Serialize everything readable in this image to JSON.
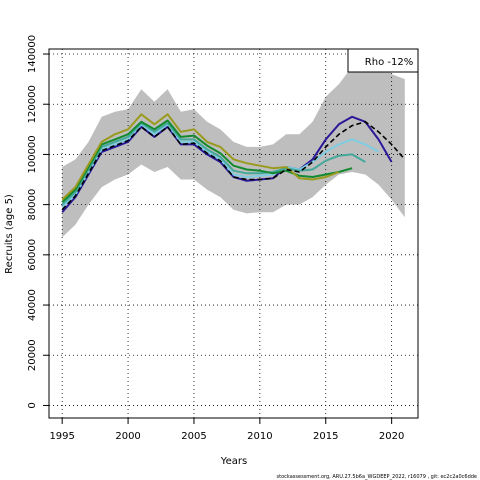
{
  "chart_data": {
    "type": "line",
    "xlabel": "Years",
    "ylabel": "Recruits (age 5)",
    "xlim": [
      1994,
      2022
    ],
    "ylim": [
      -5000,
      142000
    ],
    "x_ticks": [
      1995,
      2000,
      2005,
      2010,
      2015,
      2020
    ],
    "y_ticks": [
      0,
      20000,
      40000,
      60000,
      80000,
      100000,
      120000,
      140000
    ],
    "grid": true,
    "legend": {
      "position": "top-right",
      "text": "Rho -12%"
    },
    "footer": "stockassessment.org, ARU.27.5b6a_WGDEEP_2022, r16079 , git: ec2c2a0c6dde",
    "band": {
      "x": [
        1995,
        1996,
        1997,
        1998,
        1999,
        2000,
        2001,
        2002,
        2003,
        2004,
        2005,
        2006,
        2007,
        2008,
        2009,
        2010,
        2011,
        2012,
        2013,
        2014,
        2015,
        2016,
        2017,
        2018,
        2019,
        2020,
        2021
      ],
      "upper": [
        95000,
        98000,
        105000,
        115000,
        117000,
        118000,
        126000,
        121000,
        126000,
        117000,
        118000,
        113000,
        110000,
        105000,
        103000,
        103000,
        104000,
        108000,
        108000,
        113000,
        123000,
        128000,
        135000,
        140000,
        138000,
        132000,
        130000
      ],
      "lower": [
        67000,
        72000,
        80000,
        87000,
        90000,
        92000,
        96000,
        93000,
        95000,
        90000,
        90000,
        86000,
        83000,
        78000,
        76500,
        77000,
        77000,
        80000,
        80000,
        83000,
        88000,
        92000,
        93000,
        92000,
        88000,
        82000,
        75000
      ]
    },
    "series": [
      {
        "color": "#2b1899",
        "width": 2,
        "dash": "",
        "x": [
          1995,
          1996,
          1997,
          1998,
          1999,
          2000,
          2001,
          2002,
          2003,
          2004,
          2005,
          2006,
          2007,
          2008,
          2009,
          2010,
          2011,
          2012,
          2013,
          2014,
          2015,
          2016,
          2017,
          2018,
          2019,
          2020
        ],
        "y": [
          77000,
          83000,
          92000,
          101000,
          103000,
          105000,
          111000,
          107000,
          111000,
          104000,
          104000,
          100000,
          97000,
          91000,
          89500,
          90000,
          90500,
          95000,
          94000,
          98000,
          106000,
          112000,
          115000,
          113000,
          106000,
          97000
        ]
      },
      {
        "color": "#7ecde3",
        "width": 2,
        "dash": "",
        "x": [
          1995,
          1996,
          1997,
          1998,
          1999,
          2000,
          2001,
          2002,
          2003,
          2004,
          2005,
          2006,
          2007,
          2008,
          2009,
          2010,
          2011,
          2012,
          2013,
          2014,
          2015,
          2016,
          2017,
          2018,
          2019
        ],
        "y": [
          79000,
          84000,
          93000,
          102000,
          104000,
          106000,
          112000,
          108000,
          112000,
          105000,
          105000,
          101000,
          98000,
          92000,
          91000,
          91500,
          92000,
          95000,
          94000,
          97000,
          101000,
          104000,
          106000,
          104000,
          101000
        ]
      },
      {
        "color": "#44a89b",
        "width": 2,
        "dash": "",
        "x": [
          1995,
          1996,
          1997,
          1998,
          1999,
          2000,
          2001,
          2002,
          2003,
          2004,
          2005,
          2006,
          2007,
          2008,
          2009,
          2010,
          2011,
          2012,
          2013,
          2014,
          2015,
          2016,
          2017,
          2018
        ],
        "y": [
          80000,
          85000,
          94000,
          103000,
          105000,
          107000,
          112500,
          109000,
          112500,
          106000,
          106000,
          102000,
          99000,
          93500,
          92500,
          92500,
          93000,
          94500,
          93500,
          94000,
          97500,
          99500,
          100000,
          97000
        ]
      },
      {
        "color": "#138a30",
        "width": 2,
        "dash": "",
        "x": [
          1995,
          1996,
          1997,
          1998,
          1999,
          2000,
          2001,
          2002,
          2003,
          2004,
          2005,
          2006,
          2007,
          2008,
          2009,
          2010,
          2011,
          2012,
          2013,
          2014,
          2015,
          2016,
          2017
        ],
        "y": [
          81000,
          86000,
          95000,
          104000,
          106000,
          108000,
          113000,
          110000,
          113500,
          107000,
          107500,
          103500,
          100500,
          95500,
          94000,
          93500,
          92500,
          93500,
          91500,
          91000,
          92000,
          93000,
          94500
        ]
      },
      {
        "color": "#9a9a1e",
        "width": 2,
        "dash": "",
        "x": [
          1995,
          1996,
          1997,
          1998,
          1999,
          2000,
          2001,
          2002,
          2003,
          2004,
          2005,
          2006,
          2007,
          2008,
          2009,
          2010,
          2011,
          2012,
          2013,
          2014,
          2015,
          2016
        ],
        "y": [
          82000,
          87000,
          96000,
          105000,
          108000,
          110000,
          116000,
          112000,
          116000,
          109000,
          110000,
          105000,
          103000,
          98000,
          96500,
          95500,
          94500,
          95000,
          90500,
          90000,
          91000,
          93000
        ]
      },
      {
        "color": "#000000",
        "width": 1.6,
        "dash": "5,3",
        "x": [
          1995,
          1996,
          1997,
          1998,
          1999,
          2000,
          2001,
          2002,
          2003,
          2004,
          2005,
          2006,
          2007,
          2008,
          2009,
          2010,
          2011,
          2012,
          2013,
          2014,
          2015,
          2016,
          2017,
          2018,
          2019,
          2020,
          2021
        ],
        "y": [
          78000,
          83500,
          92500,
          101500,
          103500,
          105500,
          111000,
          107000,
          111000,
          104000,
          104500,
          100500,
          97500,
          91000,
          90000,
          90000,
          90500,
          94000,
          93000,
          97000,
          103000,
          108000,
          111500,
          113000,
          109000,
          104000,
          98000
        ]
      }
    ]
  }
}
